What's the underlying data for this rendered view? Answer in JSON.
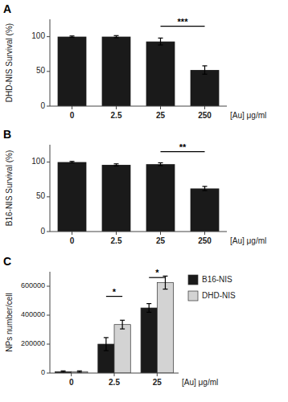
{
  "chart_data": [
    {
      "type": "bar",
      "title": "A",
      "ylabel": "DHD-NIS Survival (%)",
      "xlabel": "[Au] μg/ml",
      "categories": [
        "0",
        "2.5",
        "25",
        "250"
      ],
      "values": [
        100,
        100,
        93,
        52
      ],
      "errors": [
        1,
        1.5,
        5,
        6
      ],
      "color": "#1a1a1a",
      "ylim": [
        0,
        125
      ],
      "yticks": [
        0,
        50,
        100
      ],
      "grid": false,
      "annotations": [
        {
          "label": "***",
          "y": 115,
          "categories": [
            "25",
            "250"
          ]
        }
      ]
    },
    {
      "type": "bar",
      "title": "B",
      "ylabel": "B16-NIS Survival (%)",
      "xlabel": "[Au] μg/ml",
      "categories": [
        "0",
        "2.5",
        "25",
        "250"
      ],
      "values": [
        100,
        96,
        97,
        62
      ],
      "errors": [
        1,
        1.5,
        2,
        3
      ],
      "color": "#1a1a1a",
      "ylim": [
        0,
        125
      ],
      "yticks": [
        0,
        50,
        100
      ],
      "grid": false,
      "annotations": [
        {
          "label": "**",
          "y": 115,
          "categories": [
            "25",
            "250"
          ]
        }
      ]
    },
    {
      "type": "bar",
      "title": "C",
      "ylabel": "NPs number/cell",
      "xlabel": "[Au] μg/ml",
      "categories": [
        "0",
        "2.5",
        "25"
      ],
      "series": [
        {
          "name": "B16-NIS",
          "color": "#1a1a1a",
          "values": [
            10000,
            200000,
            450000
          ],
          "errors": [
            5000,
            45000,
            30000
          ]
        },
        {
          "name": "DHD-NIS",
          "color": "#d3d3d3",
          "values": [
            10000,
            335000,
            625000
          ],
          "errors": [
            5000,
            30000,
            45000
          ]
        }
      ],
      "ylim": [
        0,
        700000
      ],
      "yticks": [
        0,
        200000,
        400000,
        600000
      ],
      "grid": false,
      "legend": "right",
      "annotations": [
        {
          "label": "*",
          "y": 530000,
          "categories": [
            "2.5",
            "2.5"
          ]
        },
        {
          "label": "*",
          "y": 660000,
          "categories": [
            "25",
            "25"
          ]
        }
      ]
    }
  ]
}
